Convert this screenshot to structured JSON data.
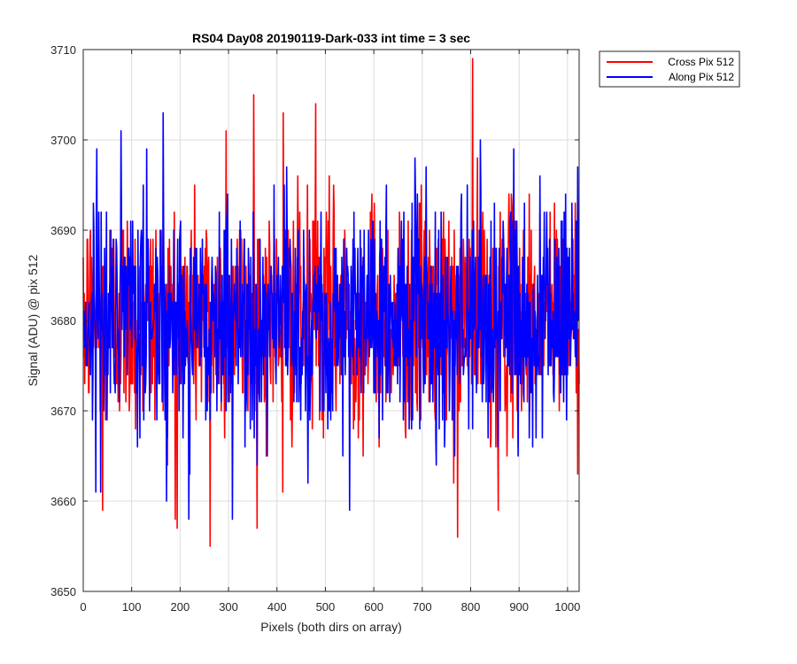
{
  "chart_data": {
    "type": "line",
    "title": "RS04 Day08 20190119-Dark-033 int time = 3 sec",
    "xlabel": "Pixels (both dirs on array)",
    "ylabel": "Signal (ADU) @ pix 512",
    "xlim": [
      0,
      1024
    ],
    "ylim": [
      3650,
      3710
    ],
    "xticks": [
      0,
      100,
      200,
      300,
      400,
      500,
      600,
      700,
      800,
      900,
      1000
    ],
    "yticks": [
      3650,
      3660,
      3670,
      3680,
      3690,
      3700,
      3710
    ],
    "grid": true,
    "legend_position": "outside-top-right",
    "series": [
      {
        "name": "Cross Pix 512",
        "color": "#ff0000",
        "mean": 3680.5,
        "std": 6.3,
        "n_points": 1024,
        "min": 3655,
        "max": 3709,
        "notable_points": [
          {
            "x": 0,
            "y": 3687
          },
          {
            "x": 40,
            "y": 3659
          },
          {
            "x": 190,
            "y": 3658
          },
          {
            "x": 262,
            "y": 3655
          },
          {
            "x": 295,
            "y": 3701
          },
          {
            "x": 352,
            "y": 3705
          },
          {
            "x": 412,
            "y": 3661
          },
          {
            "x": 413,
            "y": 3703
          },
          {
            "x": 480,
            "y": 3704
          },
          {
            "x": 773,
            "y": 3656
          },
          {
            "x": 804,
            "y": 3709
          },
          {
            "x": 857,
            "y": 3659
          }
        ]
      },
      {
        "name": "Along Pix 512",
        "color": "#0000ff",
        "mean": 3680.3,
        "std": 6.4,
        "n_points": 1024,
        "min": 3658,
        "max": 3703,
        "notable_points": [
          {
            "x": 0,
            "y": 3681
          },
          {
            "x": 28,
            "y": 3699
          },
          {
            "x": 165,
            "y": 3703
          },
          {
            "x": 218,
            "y": 3658
          },
          {
            "x": 308,
            "y": 3658
          },
          {
            "x": 550,
            "y": 3659
          },
          {
            "x": 685,
            "y": 3698
          },
          {
            "x": 820,
            "y": 3700
          },
          {
            "x": 1024,
            "y": 3680
          }
        ]
      }
    ]
  }
}
